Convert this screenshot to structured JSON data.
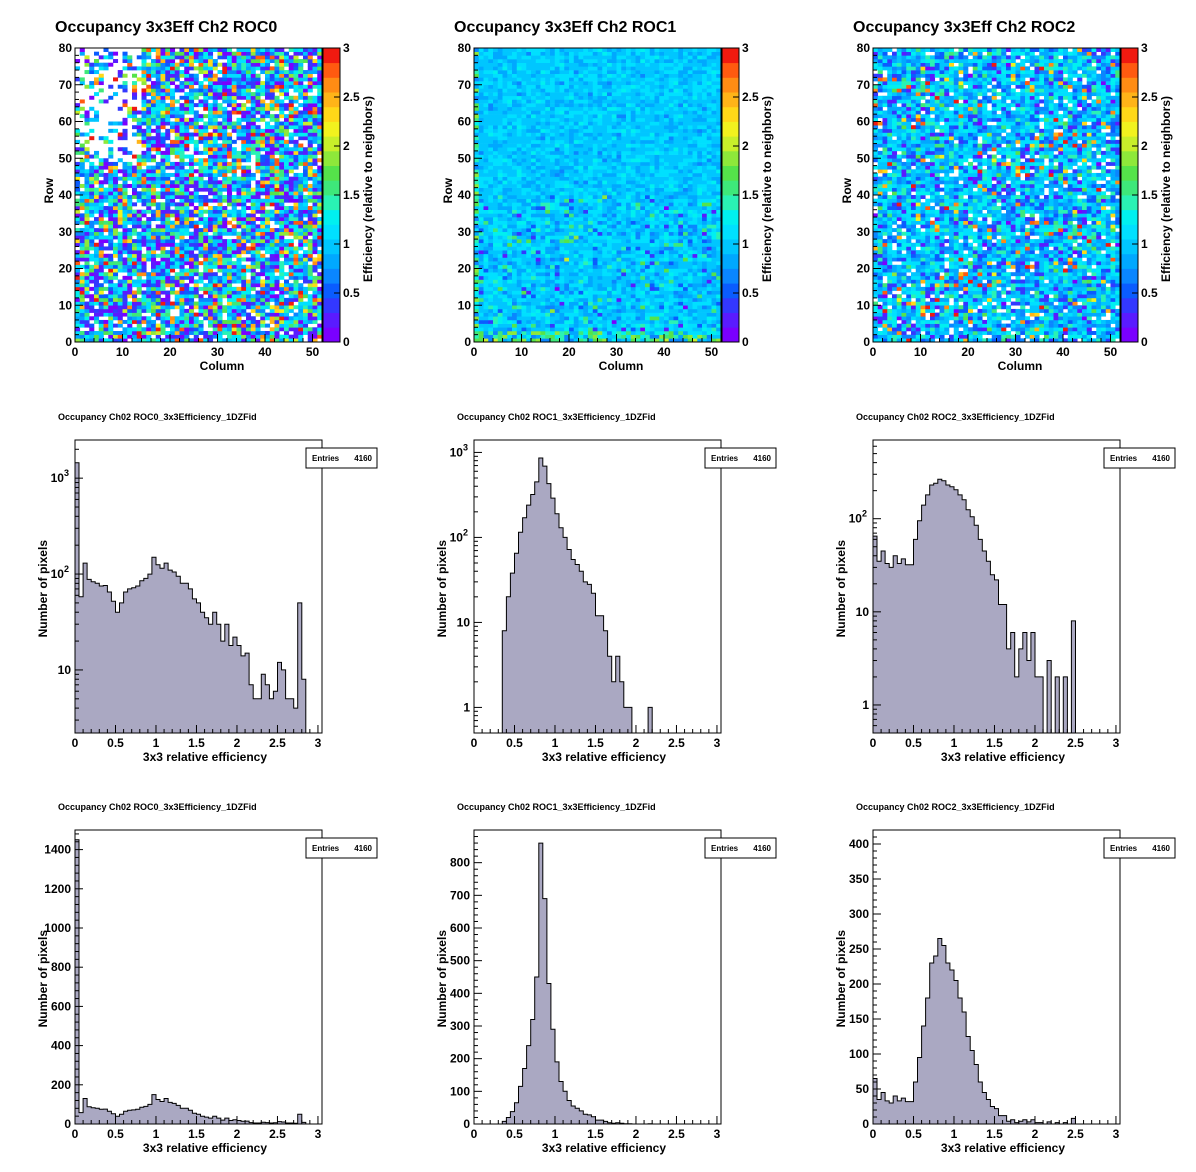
{
  "colors": {
    "hist_fill": "#aaa8c2",
    "palette": [
      "#7a00ff",
      "#5a1bff",
      "#3338ff",
      "#0a5cff",
      "#0a86ff",
      "#00a8ff",
      "#00c6ff",
      "#00e0ff",
      "#00f0f0",
      "#2af2b4",
      "#3ee87a",
      "#55e34a",
      "#8ee83a",
      "#c8ef2a",
      "#f2f21e",
      "#ffd818",
      "#ffb418",
      "#ff8c14",
      "#ff5a10",
      "#f01a10"
    ]
  },
  "chart_data": [
    {
      "type": "heatmap",
      "title": "Occupancy 3x3Eff Ch2 ROC0",
      "xlabel": "Column",
      "ylabel": "Row",
      "zlabel": "Efficiency (relative to neighbors)",
      "xlim": [
        0,
        52
      ],
      "ylim": [
        0,
        80
      ],
      "zlim": [
        0,
        3
      ],
      "xticks": [
        "0",
        "10",
        "20",
        "30",
        "40",
        "50"
      ],
      "yticks": [
        "0",
        "10",
        "20",
        "30",
        "40",
        "50",
        "60",
        "70",
        "80"
      ],
      "zticks": [
        "0",
        "0.5",
        "1",
        "1.5",
        "2",
        "2.5",
        "3"
      ],
      "pattern": "noisy-wide"
    },
    {
      "type": "heatmap",
      "title": "Occupancy 3x3Eff Ch2 ROC1",
      "xlabel": "Column",
      "ylabel": "Row",
      "zlabel": "Efficiency (relative to neighbors)",
      "xlim": [
        0,
        52
      ],
      "ylim": [
        0,
        80
      ],
      "zlim": [
        0,
        3
      ],
      "xticks": [
        "0",
        "10",
        "20",
        "30",
        "40",
        "50"
      ],
      "yticks": [
        "0",
        "10",
        "20",
        "30",
        "40",
        "50",
        "60",
        "70",
        "80"
      ],
      "zticks": [
        "0",
        "0.5",
        "1",
        "1.5",
        "2",
        "2.5",
        "3"
      ],
      "pattern": "uniform"
    },
    {
      "type": "heatmap",
      "title": "Occupancy 3x3Eff Ch2 ROC2",
      "xlabel": "Column",
      "ylabel": "Row",
      "zlabel": "Efficiency (relative to neighbors)",
      "xlim": [
        0,
        52
      ],
      "ylim": [
        0,
        80
      ],
      "zlim": [
        0,
        3
      ],
      "xticks": [
        "0",
        "10",
        "20",
        "30",
        "40",
        "50"
      ],
      "yticks": [
        "0",
        "10",
        "20",
        "30",
        "40",
        "50",
        "60",
        "70",
        "80"
      ],
      "zticks": [
        "0",
        "0.5",
        "1",
        "1.5",
        "2",
        "2.5",
        "3"
      ],
      "pattern": "noisy-medium"
    },
    {
      "type": "bar",
      "title": "Occupancy Ch02 ROC0_3x3Efficiency_1DZFid",
      "xlabel": "3x3 relative efficiency",
      "ylabel": "Number of pixels",
      "log": true,
      "xlim": [
        0,
        3.05
      ],
      "ylim": [
        2.2,
        2500
      ],
      "xticks": [
        "0",
        "0.5",
        "1",
        "1.5",
        "2",
        "2.5",
        "3"
      ],
      "yticks": [
        "10",
        "10^3",
        "10^2"
      ],
      "stats": {
        "label": "Entries",
        "value": "4160"
      },
      "bin_width": 0.05,
      "values": [
        1450,
        58,
        130,
        88,
        83,
        80,
        75,
        76,
        65,
        52,
        40,
        50,
        65,
        70,
        72,
        75,
        85,
        90,
        100,
        150,
        125,
        115,
        130,
        110,
        105,
        95,
        80,
        80,
        70,
        55,
        50,
        40,
        35,
        30,
        40,
        30,
        20,
        30,
        18,
        22,
        18,
        14,
        15,
        7,
        5,
        5,
        9,
        7,
        5,
        6,
        12,
        10,
        5,
        5,
        4,
        50,
        8
      ]
    },
    {
      "type": "bar",
      "title": "Occupancy Ch02 ROC1_3x3Efficiency_1DZFid",
      "xlabel": "3x3 relative efficiency",
      "ylabel": "Number of pixels",
      "log": true,
      "xlim": [
        0,
        3.05
      ],
      "ylim": [
        0.5,
        1400
      ],
      "xticks": [
        "0",
        "0.5",
        "1",
        "1.5",
        "2",
        "2.5",
        "3"
      ],
      "yticks": [
        "1",
        "10",
        "10^2",
        "10^3"
      ],
      "stats": {
        "label": "Entries",
        "value": "4160"
      },
      "bin_width": 0.05,
      "values": [
        0,
        0,
        0,
        0,
        0,
        0,
        0,
        8,
        20,
        38,
        65,
        115,
        170,
        240,
        320,
        450,
        860,
        690,
        430,
        290,
        190,
        130,
        100,
        72,
        55,
        48,
        40,
        30,
        28,
        22,
        12,
        12,
        8,
        4,
        2,
        4,
        2,
        1,
        1,
        0,
        0,
        0,
        0,
        1,
        0,
        0,
        0,
        0,
        0,
        0,
        0,
        0,
        0,
        0,
        0,
        0,
        0
      ]
    },
    {
      "type": "bar",
      "title": "Occupancy Ch02 ROC2_3x3Efficiency_1DZFid",
      "xlabel": "3x3 relative efficiency",
      "ylabel": "Number of pixels",
      "log": true,
      "xlim": [
        0,
        3.05
      ],
      "ylim": [
        0.5,
        700
      ],
      "xticks": [
        "0",
        "0.5",
        "1",
        "1.5",
        "2",
        "2.5",
        "3"
      ],
      "yticks": [
        "1",
        "10",
        "10^2"
      ],
      "stats": {
        "label": "Entries",
        "value": "4160"
      },
      "bin_width": 0.05,
      "values": [
        65,
        35,
        45,
        33,
        30,
        40,
        33,
        37,
        32,
        32,
        60,
        95,
        140,
        180,
        230,
        240,
        265,
        255,
        230,
        220,
        205,
        180,
        160,
        125,
        105,
        85,
        60,
        45,
        35,
        25,
        22,
        12,
        12,
        4,
        6,
        2,
        4,
        6,
        3,
        6,
        2,
        2,
        0,
        3,
        0,
        2,
        0,
        2,
        0,
        8,
        0,
        0,
        0,
        0,
        0,
        0,
        0
      ]
    },
    {
      "type": "bar",
      "title": "Occupancy Ch02 ROC0_3x3Efficiency_1DZFid",
      "xlabel": "3x3 relative efficiency",
      "ylabel": "Number of pixels",
      "log": false,
      "xlim": [
        0,
        3.05
      ],
      "ylim": [
        0,
        1500
      ],
      "xticks": [
        "0",
        "0.5",
        "1",
        "1.5",
        "2",
        "2.5",
        "3"
      ],
      "yticks": [
        "0",
        "200",
        "400",
        "600",
        "800",
        "1000",
        "1200",
        "1400"
      ],
      "stats": {
        "label": "Entries",
        "value": "4160"
      },
      "bin_width": 0.05,
      "values": [
        1450,
        58,
        130,
        88,
        83,
        80,
        75,
        76,
        65,
        52,
        40,
        50,
        65,
        70,
        72,
        75,
        85,
        90,
        100,
        150,
        125,
        115,
        130,
        110,
        105,
        95,
        80,
        80,
        70,
        55,
        50,
        40,
        35,
        30,
        40,
        30,
        20,
        30,
        18,
        22,
        18,
        14,
        15,
        7,
        5,
        5,
        9,
        7,
        5,
        6,
        12,
        10,
        5,
        5,
        4,
        50,
        8
      ]
    },
    {
      "type": "bar",
      "title": "Occupancy Ch02 ROC1_3x3Efficiency_1DZFid",
      "xlabel": "3x3 relative efficiency",
      "ylabel": "Number of pixels",
      "log": false,
      "xlim": [
        0,
        3.05
      ],
      "ylim": [
        0,
        900
      ],
      "xticks": [
        "0",
        "0.5",
        "1",
        "1.5",
        "2",
        "2.5",
        "3"
      ],
      "yticks": [
        "0",
        "100",
        "200",
        "300",
        "400",
        "500",
        "600",
        "700",
        "800"
      ],
      "stats": {
        "label": "Entries",
        "value": "4160"
      },
      "bin_width": 0.05,
      "values": [
        0,
        0,
        0,
        0,
        0,
        0,
        0,
        8,
        20,
        38,
        65,
        115,
        170,
        240,
        320,
        450,
        860,
        690,
        430,
        290,
        190,
        130,
        100,
        72,
        55,
        48,
        40,
        30,
        28,
        22,
        12,
        12,
        8,
        4,
        2,
        4,
        2,
        1,
        1,
        0,
        0,
        0,
        0,
        1,
        0,
        0,
        0,
        0,
        0,
        0,
        0,
        0,
        0,
        0,
        0,
        0,
        0
      ]
    },
    {
      "type": "bar",
      "title": "Occupancy Ch02 ROC2_3x3Efficiency_1DZFid",
      "xlabel": "3x3 relative efficiency",
      "ylabel": "Number of pixels",
      "log": false,
      "xlim": [
        0,
        3.05
      ],
      "ylim": [
        0,
        420
      ],
      "xticks": [
        "0",
        "0.5",
        "1",
        "1.5",
        "2",
        "2.5",
        "3"
      ],
      "yticks": [
        "0",
        "50",
        "100",
        "150",
        "200",
        "250",
        "300",
        "350",
        "400"
      ],
      "stats": {
        "label": "Entries",
        "value": "4160"
      },
      "bin_width": 0.05,
      "values": [
        65,
        35,
        45,
        33,
        30,
        40,
        33,
        37,
        32,
        32,
        60,
        95,
        140,
        180,
        230,
        240,
        265,
        255,
        230,
        220,
        205,
        180,
        160,
        125,
        105,
        85,
        60,
        45,
        35,
        25,
        22,
        12,
        12,
        4,
        6,
        2,
        4,
        6,
        3,
        6,
        2,
        2,
        0,
        3,
        0,
        2,
        0,
        2,
        0,
        8,
        0,
        0,
        0,
        0,
        0,
        0,
        0
      ]
    }
  ]
}
